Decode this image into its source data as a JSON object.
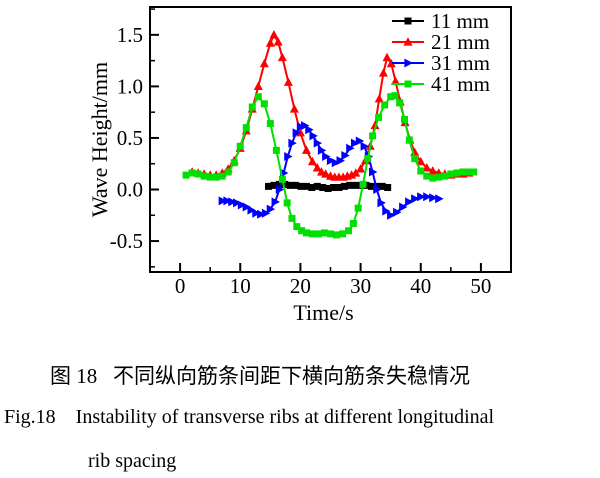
{
  "figure": {
    "caption_cn": "图 18   不同纵向筋条间距下横向筋条失稳情况",
    "caption_en_line1": "Fig.18    Instability of transverse ribs at different longitudinal",
    "caption_en_line2": "rib spacing"
  },
  "chart_data": {
    "type": "line",
    "title": "",
    "xlabel": "Time/s",
    "ylabel": "Wave Height/mm",
    "xlim": [
      -5,
      55
    ],
    "ylim": [
      -0.8,
      1.77
    ],
    "x_major_ticks": [
      0,
      10,
      20,
      30,
      40,
      50
    ],
    "x_tick_labels": [
      "0",
      "10",
      "20",
      "30",
      "40",
      "50"
    ],
    "x_minor_ticks": [
      5,
      15,
      25,
      35,
      45
    ],
    "y_major_ticks": [
      -0.5,
      0.0,
      0.5,
      1.0,
      1.5
    ],
    "y_tick_labels": [
      "-0.5",
      "0.0",
      "0.5",
      "1.0",
      "1.5"
    ],
    "y_minor_ticks": [
      -0.75,
      -0.25,
      0.25,
      0.75,
      1.25,
      1.75
    ],
    "grid": false,
    "frame": "box",
    "legend_position": "top-right-inside",
    "axis_color": "#000000",
    "series": [
      {
        "name": "11 mm",
        "color": "#000000",
        "marker": "square",
        "points": [
          [
            14.7,
            0.03
          ],
          [
            15.6,
            0.04
          ],
          [
            16.5,
            0.05
          ],
          [
            17.4,
            0.05
          ],
          [
            18.3,
            0.04
          ],
          [
            19.2,
            0.04
          ],
          [
            20.1,
            0.03
          ],
          [
            21,
            0.03
          ],
          [
            21.9,
            0.02
          ],
          [
            22.8,
            0.03
          ],
          [
            23.7,
            0.02
          ],
          [
            24.6,
            0.01
          ],
          [
            25.5,
            0.02
          ],
          [
            26.4,
            0.02
          ],
          [
            27.3,
            0.03
          ],
          [
            28.2,
            0.04
          ],
          [
            29.1,
            0.04
          ],
          [
            30,
            0.04
          ],
          [
            30.9,
            0.04
          ],
          [
            31.8,
            0.03
          ],
          [
            32.7,
            0.03
          ],
          [
            33.6,
            0.03
          ],
          [
            34.5,
            0.02
          ]
        ]
      },
      {
        "name": "21 mm",
        "color": "#ff0000",
        "marker": "triangle-up",
        "points": [
          [
            2,
            0.17
          ],
          [
            3,
            0.16
          ],
          [
            4,
            0.15
          ],
          [
            5,
            0.14
          ],
          [
            6,
            0.14
          ],
          [
            7,
            0.16
          ],
          [
            8,
            0.2
          ],
          [
            9,
            0.28
          ],
          [
            10,
            0.4
          ],
          [
            11,
            0.57
          ],
          [
            12,
            0.78
          ],
          [
            13,
            1.0
          ],
          [
            14,
            1.22
          ],
          [
            15,
            1.42
          ],
          [
            15.6,
            1.5
          ],
          [
            16.3,
            1.43
          ],
          [
            17,
            1.28
          ],
          [
            18,
            1.04
          ],
          [
            19,
            0.78
          ],
          [
            20,
            0.55
          ],
          [
            21,
            0.38
          ],
          [
            22,
            0.27
          ],
          [
            22.8,
            0.21
          ],
          [
            23.5,
            0.17
          ],
          [
            24.2,
            0.15
          ],
          [
            25,
            0.13
          ],
          [
            25.7,
            0.12
          ],
          [
            26.4,
            0.12
          ],
          [
            27.1,
            0.12
          ],
          [
            27.8,
            0.13
          ],
          [
            28.5,
            0.14
          ],
          [
            29.2,
            0.16
          ],
          [
            30,
            0.2
          ],
          [
            30.8,
            0.28
          ],
          [
            31.6,
            0.42
          ],
          [
            32.4,
            0.62
          ],
          [
            33.1,
            0.88
          ],
          [
            33.8,
            1.13
          ],
          [
            34.4,
            1.28
          ],
          [
            35.1,
            1.22
          ],
          [
            35.8,
            1.05
          ],
          [
            36.6,
            0.85
          ],
          [
            37.4,
            0.65
          ],
          [
            38.2,
            0.48
          ],
          [
            39,
            0.36
          ],
          [
            40,
            0.27
          ],
          [
            41,
            0.21
          ],
          [
            42,
            0.18
          ],
          [
            43,
            0.16
          ],
          [
            44,
            0.15
          ],
          [
            45,
            0.14
          ],
          [
            46,
            0.15
          ],
          [
            47,
            0.15
          ],
          [
            48,
            0.16
          ]
        ]
      },
      {
        "name": "31 mm",
        "color": "#0000ff",
        "marker": "triangle-right",
        "points": [
          [
            7,
            -0.11
          ],
          [
            7.8,
            -0.11
          ],
          [
            8.6,
            -0.12
          ],
          [
            9.4,
            -0.13
          ],
          [
            10.2,
            -0.15
          ],
          [
            11,
            -0.17
          ],
          [
            11.8,
            -0.2
          ],
          [
            12.6,
            -0.23
          ],
          [
            13.4,
            -0.24
          ],
          [
            14.2,
            -0.23
          ],
          [
            15,
            -0.19
          ],
          [
            15.8,
            -0.12
          ],
          [
            16.5,
            0.0
          ],
          [
            17.2,
            0.16
          ],
          [
            17.9,
            0.32
          ],
          [
            18.6,
            0.45
          ],
          [
            19.3,
            0.55
          ],
          [
            20,
            0.61
          ],
          [
            20.7,
            0.62
          ],
          [
            21.4,
            0.58
          ],
          [
            22.1,
            0.52
          ],
          [
            22.8,
            0.45
          ],
          [
            23.5,
            0.38
          ],
          [
            24.2,
            0.32
          ],
          [
            25,
            0.28
          ],
          [
            25.8,
            0.26
          ],
          [
            26.6,
            0.28
          ],
          [
            27.4,
            0.33
          ],
          [
            28.2,
            0.4
          ],
          [
            29,
            0.45
          ],
          [
            29.8,
            0.47
          ],
          [
            30.6,
            0.42
          ],
          [
            31.3,
            0.32
          ],
          [
            32,
            0.17
          ],
          [
            32.7,
            0.0
          ],
          [
            33.4,
            -0.13
          ],
          [
            34.2,
            -0.21
          ],
          [
            35,
            -0.25
          ],
          [
            36,
            -0.22
          ],
          [
            37,
            -0.17
          ],
          [
            38,
            -0.12
          ],
          [
            39,
            -0.09
          ],
          [
            40,
            -0.07
          ],
          [
            41,
            -0.07
          ],
          [
            42,
            -0.08
          ],
          [
            43,
            -0.09
          ]
        ]
      },
      {
        "name": "41 mm",
        "color": "#00e000",
        "marker": "square",
        "points": [
          [
            1,
            0.14
          ],
          [
            2,
            0.16
          ],
          [
            3,
            0.15
          ],
          [
            4,
            0.13
          ],
          [
            5,
            0.12
          ],
          [
            6,
            0.12
          ],
          [
            7,
            0.13
          ],
          [
            8,
            0.17
          ],
          [
            9,
            0.26
          ],
          [
            10,
            0.42
          ],
          [
            11,
            0.6
          ],
          [
            12,
            0.8
          ],
          [
            13,
            0.9
          ],
          [
            14,
            0.83
          ],
          [
            15,
            0.64
          ],
          [
            16,
            0.38
          ],
          [
            17,
            0.1
          ],
          [
            17.8,
            -0.13
          ],
          [
            18.6,
            -0.28
          ],
          [
            19.4,
            -0.36
          ],
          [
            20.2,
            -0.4
          ],
          [
            21,
            -0.42
          ],
          [
            22,
            -0.43
          ],
          [
            23,
            -0.43
          ],
          [
            24,
            -0.42
          ],
          [
            25,
            -0.43
          ],
          [
            26,
            -0.44
          ],
          [
            27,
            -0.43
          ],
          [
            28,
            -0.4
          ],
          [
            28.8,
            -0.33
          ],
          [
            29.6,
            -0.18
          ],
          [
            30.4,
            0.05
          ],
          [
            31.2,
            0.3
          ],
          [
            32,
            0.52
          ],
          [
            33,
            0.7
          ],
          [
            34,
            0.82
          ],
          [
            35,
            0.9
          ],
          [
            35.7,
            0.91
          ],
          [
            36.5,
            0.84
          ],
          [
            37.3,
            0.68
          ],
          [
            38.1,
            0.48
          ],
          [
            39,
            0.3
          ],
          [
            40,
            0.18
          ],
          [
            41,
            0.13
          ],
          [
            42,
            0.11
          ],
          [
            43,
            0.12
          ],
          [
            44,
            0.13
          ],
          [
            45,
            0.15
          ],
          [
            46,
            0.16
          ],
          [
            47,
            0.17
          ],
          [
            48,
            0.17
          ],
          [
            48.8,
            0.17
          ]
        ]
      }
    ]
  }
}
